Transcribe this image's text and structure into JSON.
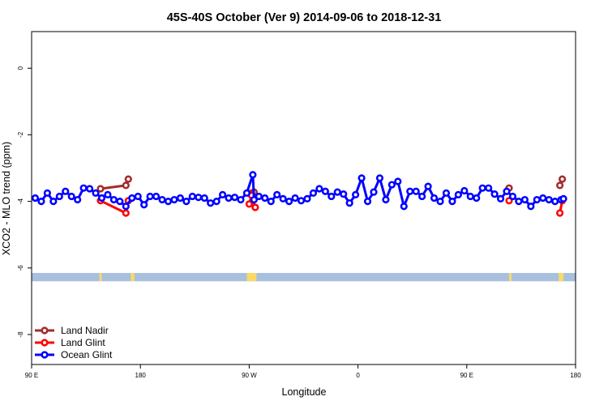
{
  "chart_data": {
    "type": "line",
    "title": "45S-40S October (Ver 9)   2014-09-06 to 2018-12-31",
    "xlabel": "Longitude",
    "ylabel": "XCO2 - MLO trend (ppm)",
    "xlim": [
      90,
      450
    ],
    "ylim": [
      -8.9,
      1.1
    ],
    "x_ticks": [
      {
        "value": 90,
        "label": "90 E"
      },
      {
        "value": 180,
        "label": "180"
      },
      {
        "value": 270,
        "label": "90 W"
      },
      {
        "value": 360,
        "label": "0"
      },
      {
        "value": 450,
        "label": "90 E"
      },
      {
        "value": 540,
        "label": "180"
      }
    ],
    "x_lim_note": "axis spans 90 E to 180 (next wrap), i.e. 90 to 540 in continuous degrees",
    "y_ticks": [
      {
        "value": 0,
        "label": "0"
      },
      {
        "value": -2,
        "label": "-2"
      },
      {
        "value": -4,
        "label": "-4"
      },
      {
        "value": -6,
        "label": "-6"
      },
      {
        "value": -8,
        "label": "-8"
      }
    ],
    "grid": false,
    "legend_position": "bottom-left",
    "land_band": {
      "y_top": -6.15,
      "y_bottom": -6.4,
      "ocean_color": "#a8c0de",
      "land_color": "#f8d96a",
      "land_spans": [
        [
          146,
          148
        ],
        [
          172,
          175
        ],
        [
          268,
          276
        ],
        [
          485,
          487
        ],
        [
          526,
          530
        ]
      ]
    },
    "series": [
      {
        "name": "Land Nadir",
        "color": "#a52a2a",
        "segments": [
          {
            "x": [
              147,
              168,
              170
            ],
            "y": [
              -3.62,
              -3.52,
              -3.33
            ]
          },
          {
            "x": [
              272,
              274
            ],
            "y": [
              -3.75,
              -3.72
            ]
          },
          {
            "x": [
              485
            ],
            "y": [
              -3.6
            ]
          },
          {
            "x": [
              527,
              529
            ],
            "y": [
              -3.52,
              -3.33
            ]
          }
        ]
      },
      {
        "name": "Land Glint",
        "color": "#ff0000",
        "segments": [
          {
            "x": [
              147,
              168,
              170
            ],
            "y": [
              -3.98,
              -4.35,
              -3.98
            ]
          },
          {
            "x": [
              270,
              272,
              275
            ],
            "y": [
              -4.08,
              -3.82,
              -4.18
            ]
          },
          {
            "x": [
              485
            ],
            "y": [
              -3.98
            ]
          },
          {
            "x": [
              527,
              529
            ],
            "y": [
              -4.35,
              -3.98
            ]
          }
        ]
      },
      {
        "name": "Ocean Glint",
        "color": "#0000ff",
        "segments": [
          {
            "x": [
              93,
              98,
              103,
              108,
              113,
              118,
              123,
              128,
              133,
              138,
              143,
              148,
              153,
              158,
              163,
              168,
              173,
              178,
              183,
              188,
              193,
              198,
              203,
              208,
              213,
              218,
              223,
              228,
              233,
              238,
              243,
              248,
              253,
              258,
              263,
              268,
              273,
              274,
              278,
              283,
              288,
              293,
              298,
              303,
              308,
              313,
              318,
              323,
              328,
              333,
              338,
              343,
              348,
              353,
              358,
              363,
              368,
              373,
              378,
              383,
              388,
              393,
              398,
              403,
              408,
              413,
              418,
              423,
              428,
              433,
              438,
              443,
              448,
              453,
              458,
              463,
              468,
              473,
              478,
              483,
              488,
              493,
              498,
              503,
              508,
              513,
              518,
              523,
              528,
              530
            ],
            "y": [
              -3.9,
              -4.0,
              -3.75,
              -4.0,
              -3.85,
              -3.7,
              -3.85,
              -3.95,
              -3.6,
              -3.62,
              -3.75,
              -3.9,
              -3.8,
              -3.95,
              -4.0,
              -4.15,
              -3.9,
              -3.85,
              -4.1,
              -3.85,
              -3.85,
              -3.95,
              -4.0,
              -3.95,
              -3.9,
              -4.0,
              -3.85,
              -3.88,
              -3.9,
              -4.05,
              -4.0,
              -3.8,
              -3.9,
              -3.88,
              -3.95,
              -3.75,
              -3.2,
              -3.95,
              -3.85,
              -3.9,
              -4.0,
              -3.8,
              -3.92,
              -4.0,
              -3.9,
              -3.98,
              -3.92,
              -3.75,
              -3.62,
              -3.7,
              -3.85,
              -3.72,
              -3.78,
              -4.05,
              -3.8,
              -3.3,
              -4.0,
              -3.72,
              -3.3,
              -3.95,
              -3.5,
              -3.4,
              -4.15,
              -3.7,
              -3.7,
              -3.85,
              -3.55,
              -3.9,
              -4.0,
              -3.75,
              -4.0,
              -3.8,
              -3.68,
              -3.85,
              -3.9,
              -3.6,
              -3.6,
              -3.78,
              -3.92,
              -3.7,
              -3.85,
              -4.0,
              -3.95,
              -4.15,
              -3.95,
              -3.9,
              -3.95,
              -4.0,
              -3.95,
              -3.92
            ]
          }
        ]
      }
    ]
  }
}
